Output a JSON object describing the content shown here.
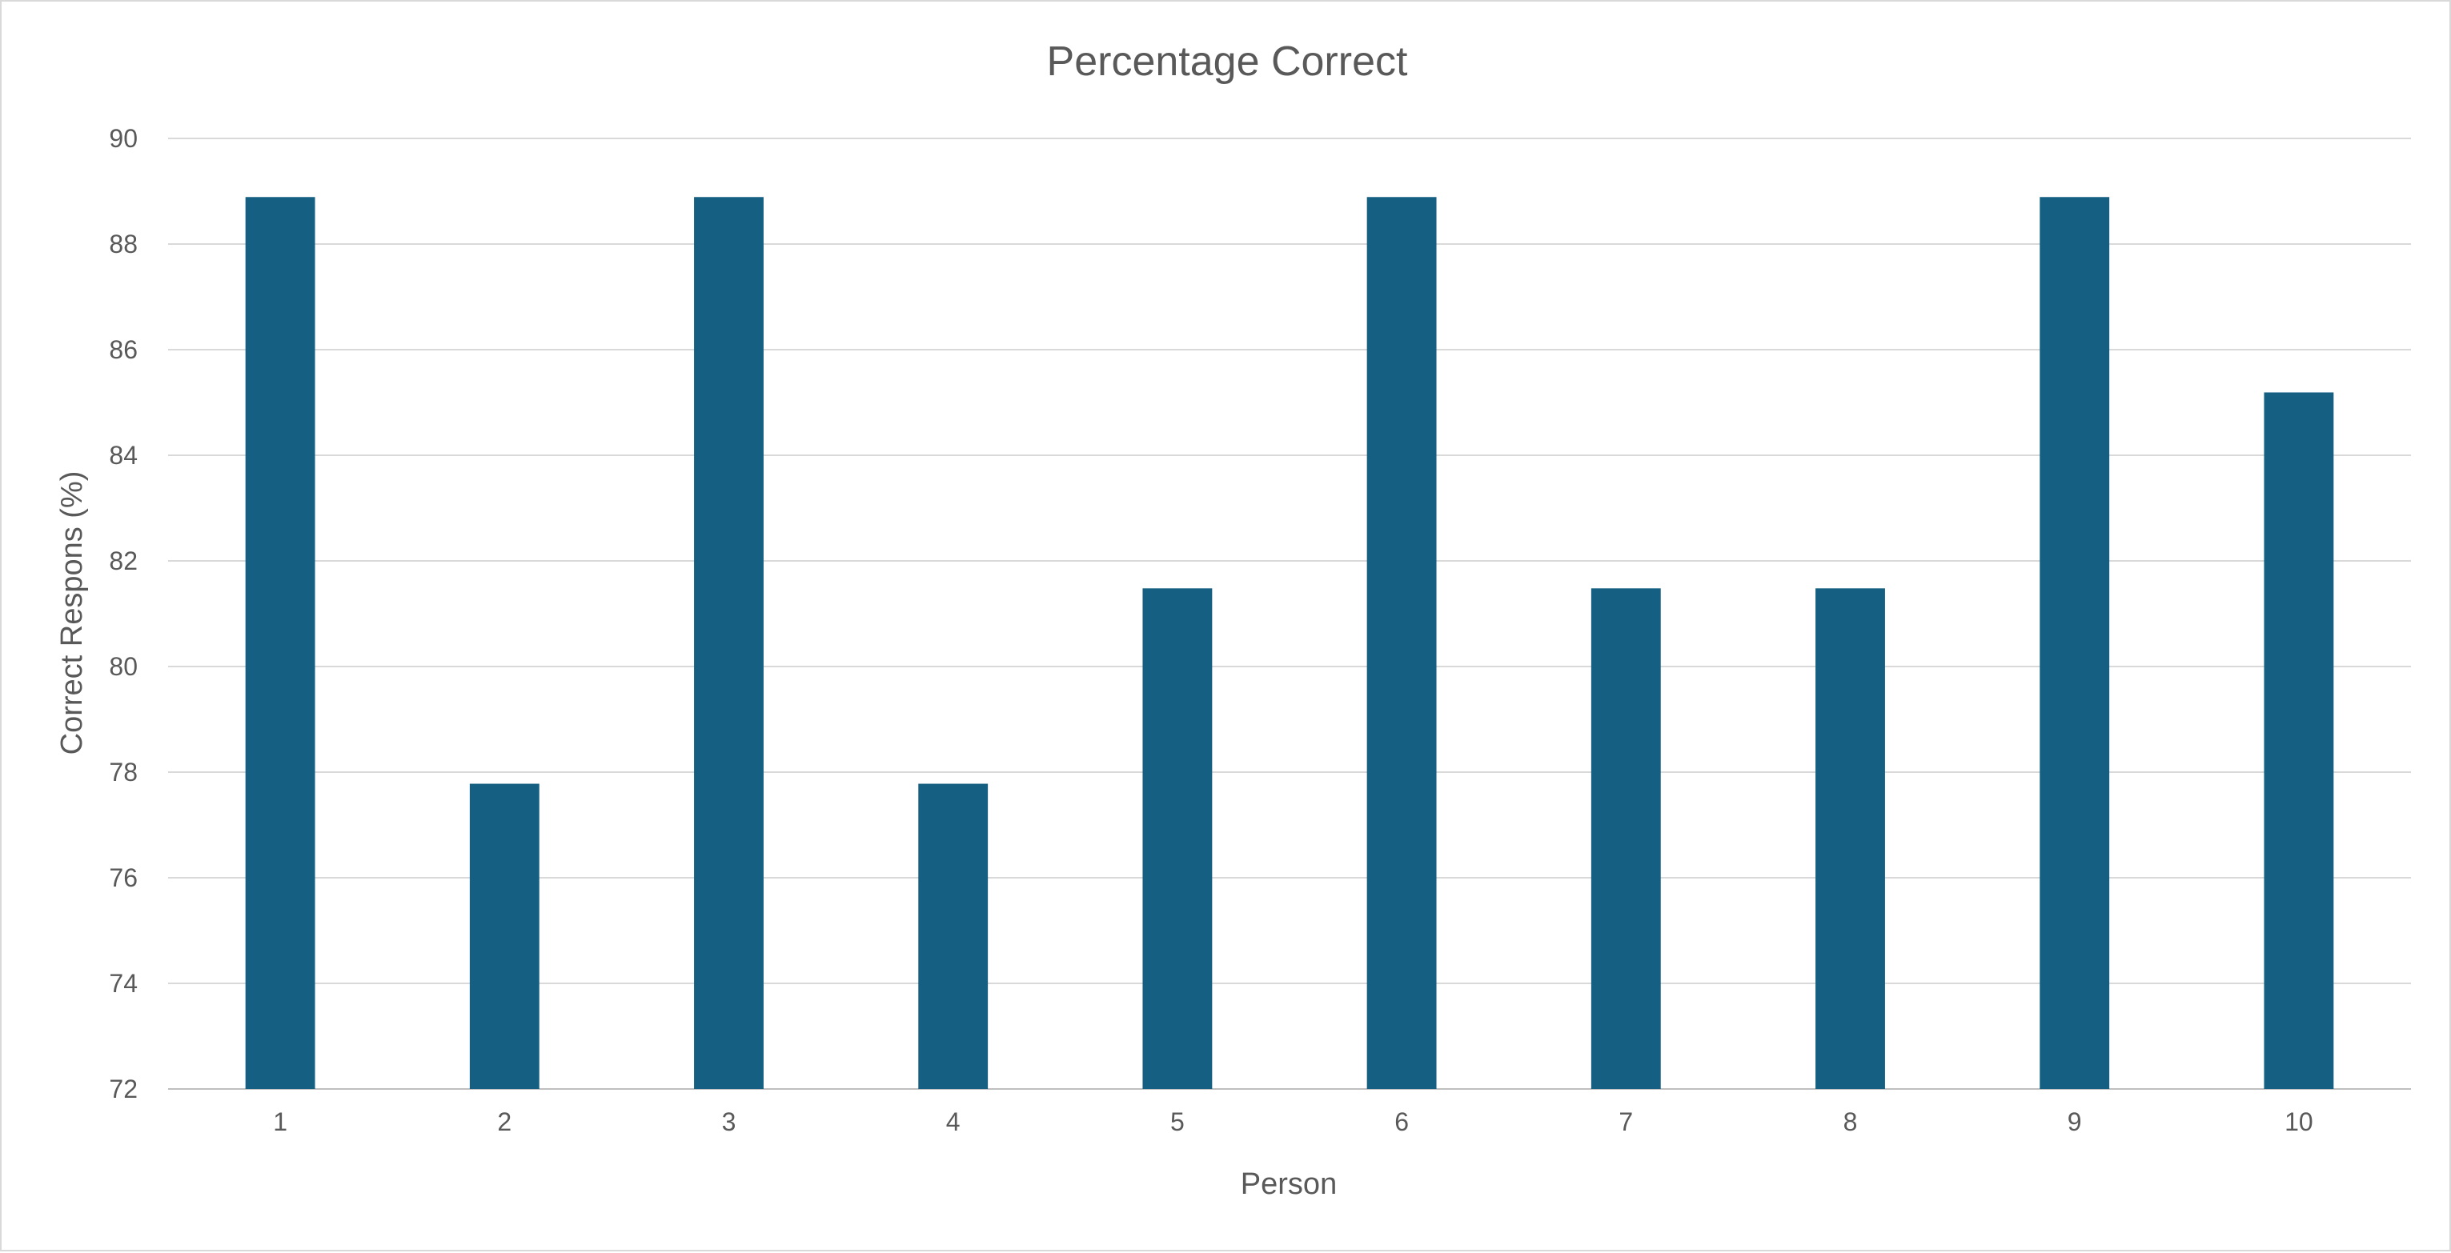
{
  "chart_data": {
    "type": "bar",
    "title": "Percentage Correct",
    "xlabel": "Person",
    "ylabel": "Correct Respons (%)",
    "categories": [
      "1",
      "2",
      "3",
      "4",
      "5",
      "6",
      "7",
      "8",
      "9",
      "10"
    ],
    "values": [
      88.89,
      77.78,
      88.89,
      77.78,
      81.48,
      88.89,
      81.48,
      81.48,
      88.89,
      85.19
    ],
    "ylim": [
      72,
      90
    ],
    "yticks": [
      "72",
      "74",
      "76",
      "78",
      "80",
      "82",
      "84",
      "86",
      "88",
      "90"
    ],
    "grid": true,
    "legend": "none",
    "bar_color": "#155f82"
  }
}
